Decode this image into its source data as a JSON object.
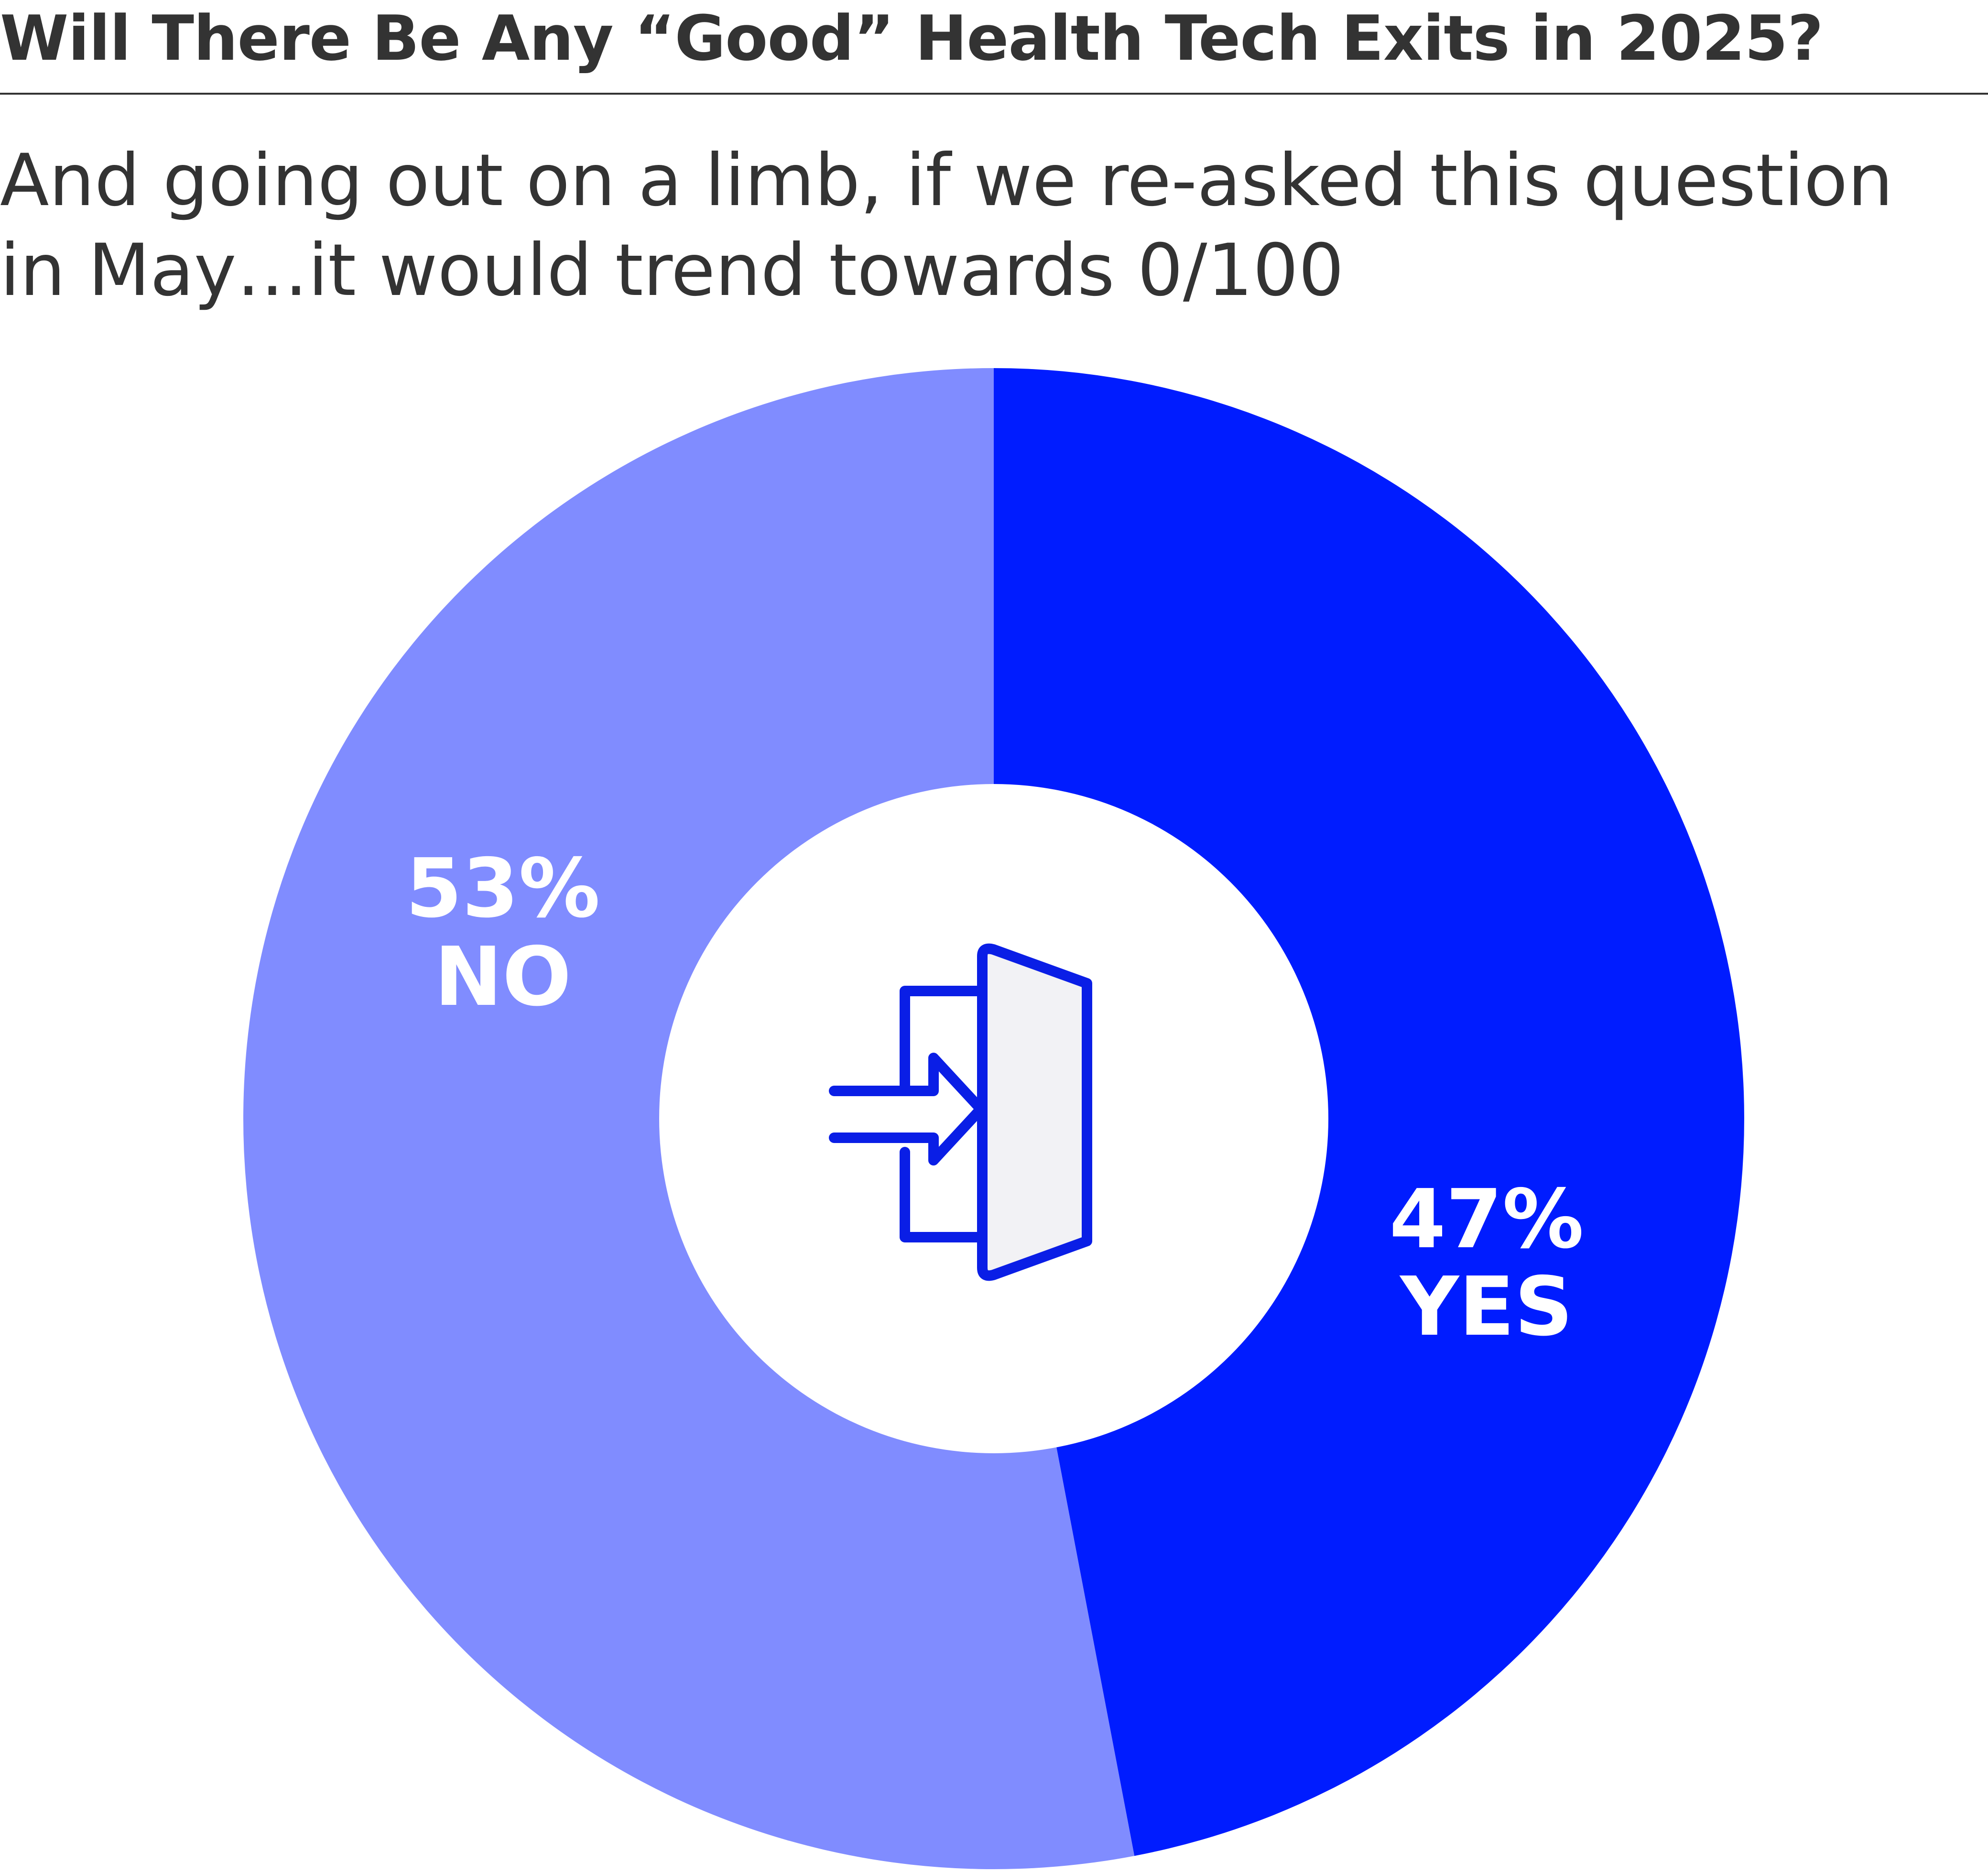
{
  "title": "Will There Be Any “Good” Health Tech Exits in 2025?",
  "subtitle": {
    "line1": "And going out on a limb, if we re-asked this question",
    "line2": "in May…it would trend towards 0/100"
  },
  "chart_data": {
    "type": "pie",
    "variant": "donut",
    "series": [
      {
        "name": "YES",
        "value": 47,
        "label": "47%",
        "color": "#001cff"
      },
      {
        "name": "NO",
        "value": 53,
        "label": "53%",
        "color": "#808cff"
      }
    ],
    "center_icon": "exit-door-icon",
    "center_icon_colors": {
      "stroke": "#0a1ee6",
      "fill": "#f2f2f5"
    }
  }
}
